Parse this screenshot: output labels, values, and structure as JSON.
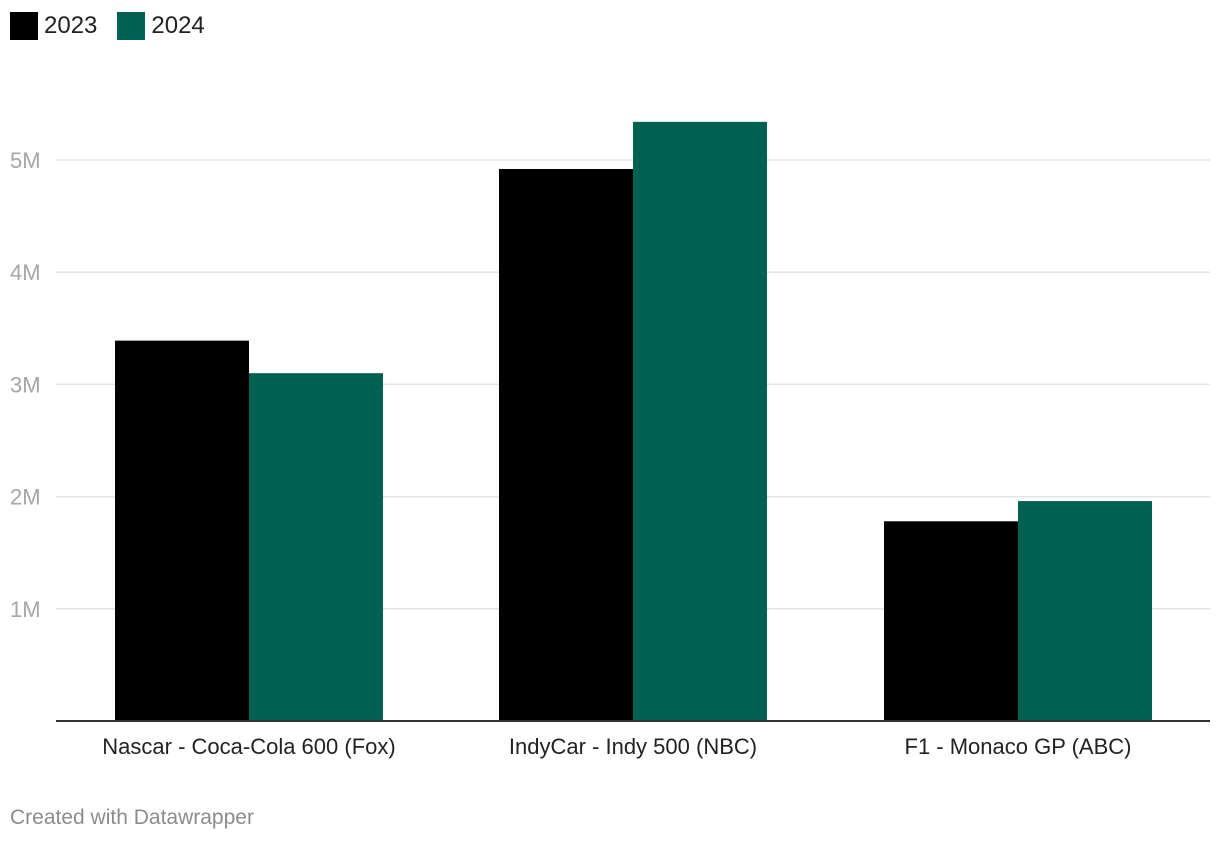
{
  "chart_data": {
    "type": "bar",
    "title": "",
    "xlabel": "",
    "ylabel": "",
    "categories": [
      "Nascar - Coca-Cola 600 (Fox)",
      "IndyCar - Indy 500 (NBC)",
      "F1 - Monaco GP (ABC)"
    ],
    "series": [
      {
        "name": "2023",
        "color": "#000000",
        "values": [
          3390000,
          4920000,
          1780000
        ]
      },
      {
        "name": "2024",
        "color": "#006151",
        "values": [
          3100000,
          5340000,
          1960000
        ]
      }
    ],
    "ylim": [
      0,
      5500000
    ],
    "yticks": [
      1000000,
      2000000,
      3000000,
      4000000,
      5000000
    ],
    "ytick_labels": [
      "1M",
      "2M",
      "3M",
      "4M",
      "5M"
    ],
    "grid": true,
    "legend": "top-left"
  },
  "footer": {
    "credit": "Created with Datawrapper"
  }
}
